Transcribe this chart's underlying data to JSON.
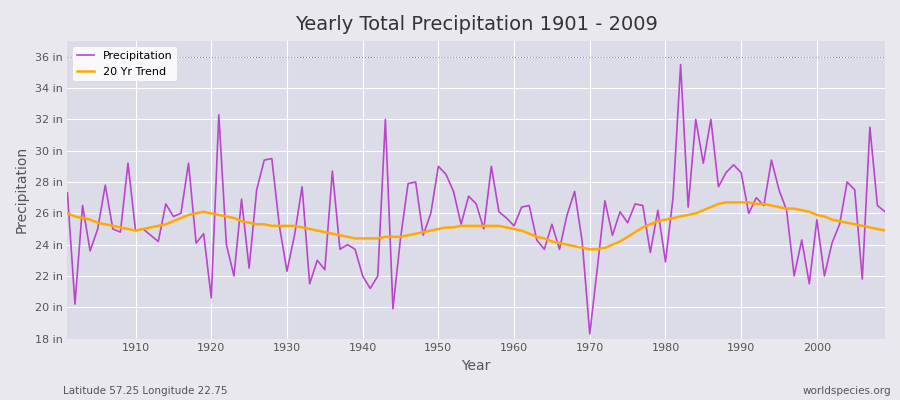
{
  "title": "Yearly Total Precipitation 1901 - 2009",
  "xlabel": "Year",
  "ylabel": "Precipitation",
  "lat_lon_label": "Latitude 57.25 Longitude 22.75",
  "watermark": "worldspecies.org",
  "background_color": "#e8e8ee",
  "plot_bg_color": "#dcdce8",
  "precip_color": "#bb44cc",
  "trend_color": "#ffaa00",
  "ylim_min": 18,
  "ylim_max": 37,
  "ytick_labels": [
    "18 in",
    "20 in",
    "22 in",
    "24 in",
    "26 in",
    "28 in",
    "30 in",
    "32 in",
    "34 in",
    "36 in"
  ],
  "ytick_values": [
    18,
    20,
    22,
    24,
    26,
    28,
    30,
    32,
    34,
    36
  ],
  "years": [
    1901,
    1902,
    1903,
    1904,
    1905,
    1906,
    1907,
    1908,
    1909,
    1910,
    1911,
    1912,
    1913,
    1914,
    1915,
    1916,
    1917,
    1918,
    1919,
    1920,
    1921,
    1922,
    1923,
    1924,
    1925,
    1926,
    1927,
    1928,
    1929,
    1930,
    1931,
    1932,
    1933,
    1934,
    1935,
    1936,
    1937,
    1938,
    1939,
    1940,
    1941,
    1942,
    1943,
    1944,
    1945,
    1946,
    1947,
    1948,
    1949,
    1950,
    1951,
    1952,
    1953,
    1954,
    1955,
    1956,
    1957,
    1958,
    1959,
    1960,
    1961,
    1962,
    1963,
    1964,
    1965,
    1966,
    1967,
    1968,
    1969,
    1970,
    1971,
    1972,
    1973,
    1974,
    1975,
    1976,
    1977,
    1978,
    1979,
    1980,
    1981,
    1982,
    1983,
    1984,
    1985,
    1986,
    1987,
    1988,
    1989,
    1990,
    1991,
    1992,
    1993,
    1994,
    1995,
    1996,
    1997,
    1998,
    1999,
    2000,
    2001,
    2002,
    2003,
    2004,
    2005,
    2006,
    2007,
    2008,
    2009
  ],
  "precip": [
    27.3,
    20.2,
    26.5,
    23.6,
    25.0,
    27.8,
    25.0,
    24.8,
    29.2,
    24.9,
    25.0,
    24.6,
    24.2,
    26.6,
    25.8,
    26.0,
    29.2,
    24.1,
    24.7,
    20.6,
    32.3,
    24.0,
    22.0,
    26.9,
    22.5,
    27.5,
    29.4,
    29.5,
    25.2,
    22.3,
    24.6,
    27.7,
    21.5,
    23.0,
    22.4,
    28.7,
    23.7,
    24.0,
    23.7,
    22.0,
    21.2,
    22.0,
    32.0,
    19.9,
    24.4,
    27.9,
    28.0,
    24.6,
    26.0,
    29.0,
    28.5,
    27.4,
    25.3,
    27.1,
    26.6,
    25.0,
    29.0,
    26.1,
    25.7,
    25.2,
    26.4,
    26.5,
    24.3,
    23.7,
    25.3,
    23.7,
    25.9,
    27.4,
    24.2,
    18.3,
    22.5,
    26.8,
    24.6,
    26.1,
    25.4,
    26.6,
    26.5,
    23.5,
    26.2,
    22.9,
    27.0,
    35.5,
    26.4,
    32.0,
    29.2,
    32.0,
    27.7,
    28.6,
    29.1,
    28.6,
    26.0,
    27.0,
    26.5,
    29.4,
    27.5,
    26.2,
    22.0,
    24.3,
    21.5,
    25.6,
    22.0,
    24.1,
    25.3,
    28.0,
    27.5,
    21.8,
    31.5,
    26.5,
    26.1
  ],
  "trend": [
    26.0,
    25.8,
    25.7,
    25.6,
    25.4,
    25.3,
    25.2,
    25.1,
    25.0,
    24.9,
    25.0,
    25.1,
    25.2,
    25.3,
    25.5,
    25.7,
    25.9,
    26.0,
    26.1,
    26.0,
    25.9,
    25.8,
    25.7,
    25.5,
    25.4,
    25.3,
    25.3,
    25.2,
    25.2,
    25.2,
    25.2,
    25.1,
    25.0,
    24.9,
    24.8,
    24.7,
    24.6,
    24.5,
    24.4,
    24.4,
    24.4,
    24.4,
    24.5,
    24.5,
    24.5,
    24.6,
    24.7,
    24.8,
    24.9,
    25.0,
    25.1,
    25.1,
    25.2,
    25.2,
    25.2,
    25.2,
    25.2,
    25.2,
    25.1,
    25.0,
    24.9,
    24.7,
    24.5,
    24.4,
    24.2,
    24.1,
    24.0,
    23.9,
    23.8,
    23.7,
    23.7,
    23.8,
    24.0,
    24.2,
    24.5,
    24.8,
    25.1,
    25.3,
    25.5,
    25.6,
    25.7,
    25.8,
    25.9,
    26.0,
    26.2,
    26.4,
    26.6,
    26.7,
    26.7,
    26.7,
    26.7,
    26.6,
    26.6,
    26.5,
    26.4,
    26.3,
    26.3,
    26.2,
    26.1,
    25.9,
    25.8,
    25.6,
    25.5,
    25.4,
    25.3,
    25.2,
    25.1,
    25.0,
    24.9
  ]
}
